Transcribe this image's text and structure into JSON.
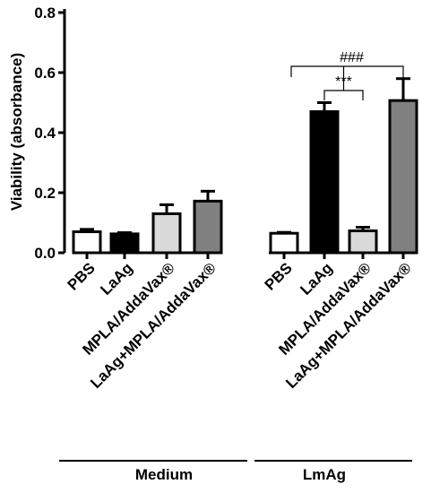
{
  "chart_data": {
    "type": "bar",
    "ylabel": "Viability (absorbance)",
    "ylim": [
      0,
      0.8
    ],
    "yticks": [
      "0.0",
      "0.2",
      "0.4",
      "0.6",
      "0.8"
    ],
    "ytick_values": [
      0,
      0.2,
      0.4,
      0.6,
      0.8
    ],
    "groups": [
      {
        "name": "Medium",
        "categories": [
          "PBS",
          "LaAg",
          "MPLA/AddaVax®",
          "LaAg+MPLA/AddaVax®"
        ],
        "values": [
          0.07,
          0.063,
          0.13,
          0.172
        ],
        "errors": [
          0.008,
          0.004,
          0.03,
          0.033
        ]
      },
      {
        "name": "LmAg",
        "categories": [
          "PBS",
          "LaAg",
          "MPLA/AddaVax®",
          "LaAg+MPLA/AddaVax®"
        ],
        "values": [
          0.065,
          0.47,
          0.073,
          0.507
        ],
        "errors": [
          0.003,
          0.03,
          0.012,
          0.073
        ]
      }
    ],
    "bar_colors": [
      "#ffffff",
      "#000000",
      "#d9d9d9",
      "#808080"
    ],
    "significance": [
      {
        "label": "***",
        "from_group": 1,
        "from": 1,
        "to": 2
      },
      {
        "label": "###",
        "from_group": 1,
        "from": 2,
        "to": 3
      }
    ],
    "grid": false
  }
}
